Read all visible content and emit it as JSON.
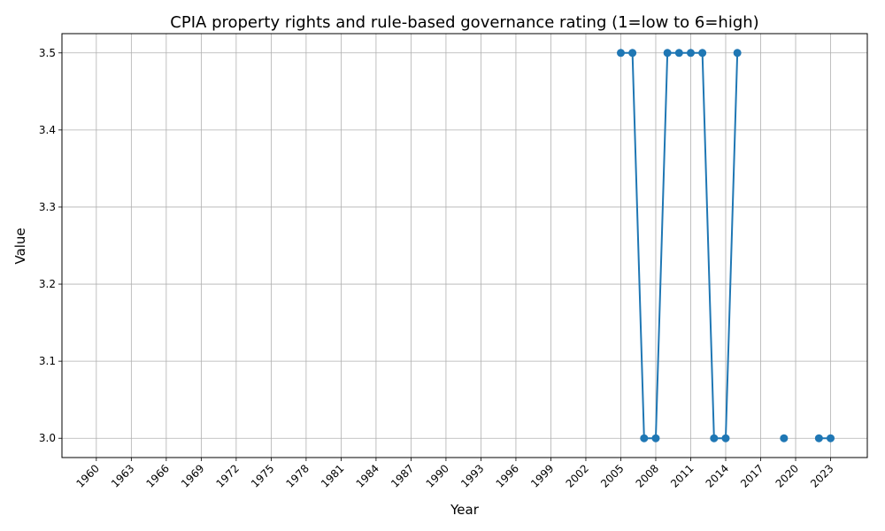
{
  "chart_data": {
    "type": "line",
    "title": "CPIA property rights and rule-based governance rating (1=low to 6=high)",
    "xlabel": "Year",
    "ylabel": "Value",
    "xlim": [
      1960,
      2023
    ],
    "ylim": [
      2.975,
      3.525
    ],
    "x_ticks": [
      1960,
      1963,
      1966,
      1969,
      1972,
      1975,
      1978,
      1981,
      1984,
      1987,
      1990,
      1993,
      1996,
      1999,
      2002,
      2005,
      2008,
      2011,
      2014,
      2017,
      2020,
      2023
    ],
    "y_ticks": [
      "3.0",
      "3.1",
      "3.2",
      "3.3",
      "3.4",
      "3.5"
    ],
    "grid": true,
    "color": "#1f77b4",
    "series": [
      {
        "x": [
          2005,
          2006,
          2007,
          2008,
          2009,
          2010,
          2011,
          2012,
          2013,
          2014,
          2015,
          2016,
          2017,
          2018,
          2019,
          2020,
          2021,
          2022,
          2023
        ],
        "values": [
          3.5,
          3.5,
          3.0,
          3.0,
          3.5,
          3.5,
          3.5,
          3.5,
          3.0,
          3.0,
          3.5,
          null,
          null,
          null,
          3.0,
          null,
          null,
          3.0,
          3.0
        ]
      }
    ]
  }
}
